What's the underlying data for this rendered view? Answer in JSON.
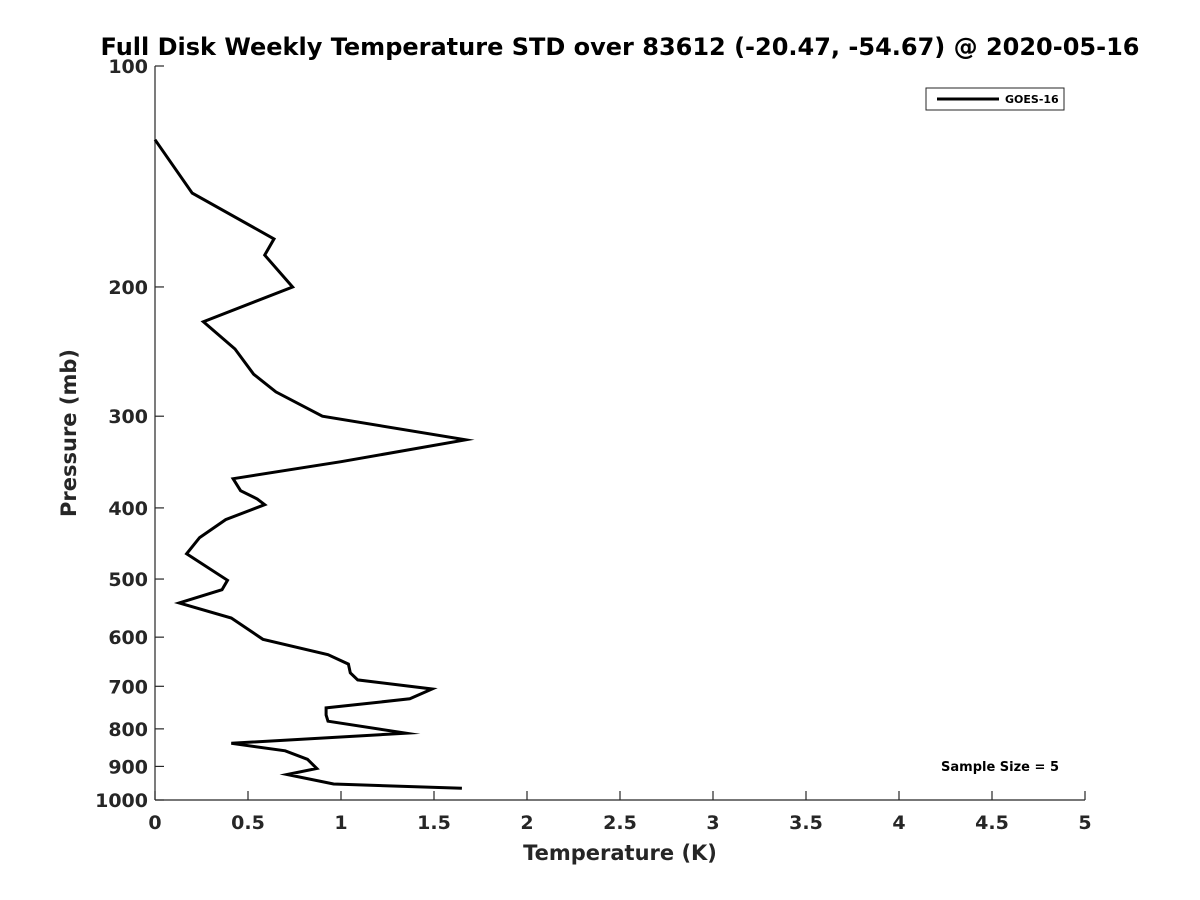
{
  "chart_data": {
    "type": "line",
    "title": "Full Disk Weekly Temperature STD over 83612 (-20.47, -54.67) @ 2020-05-16",
    "xlabel": "Temperature (K)",
    "ylabel": "Pressure (mb)",
    "xlim": [
      0,
      5
    ],
    "ylim": [
      100,
      1000
    ],
    "y_scale": "log",
    "y_reversed": true,
    "x_ticks": [
      "0",
      "0.5",
      "1",
      "1.5",
      "2",
      "2.5",
      "3",
      "3.5",
      "4",
      "4.5",
      "5"
    ],
    "y_ticks": [
      "100",
      "200",
      "300",
      "400",
      "500",
      "600",
      "700",
      "800",
      "900",
      "1000"
    ],
    "grid": false,
    "legend_position": "top-right",
    "annotation": "Sample Size = 5",
    "series": [
      {
        "name": "GOES-16",
        "color": "#000000",
        "x": [
          0.0,
          0.2,
          0.64,
          0.59,
          0.74,
          0.26,
          0.43,
          0.53,
          0.65,
          0.9,
          1.67,
          1.0,
          0.42,
          0.46,
          0.55,
          0.59,
          0.38,
          0.24,
          0.17,
          0.39,
          0.36,
          0.13,
          0.41,
          0.58,
          0.93,
          1.04,
          1.05,
          1.09,
          1.49,
          1.37,
          0.92,
          0.92,
          0.93,
          1.35,
          0.41,
          0.7,
          0.82,
          0.87,
          0.71,
          0.96,
          1.65
        ],
        "y": [
          126,
          149,
          172,
          181,
          200,
          223,
          243,
          263,
          278,
          300,
          323,
          346,
          365,
          379,
          389,
          396,
          415,
          439,
          462,
          502,
          517,
          539,
          565,
          604,
          634,
          653,
          671,
          686,
          706,
          728,
          749,
          766,
          781,
          811,
          837,
          857,
          880,
          906,
          923,
          951,
          964
        ]
      }
    ]
  }
}
